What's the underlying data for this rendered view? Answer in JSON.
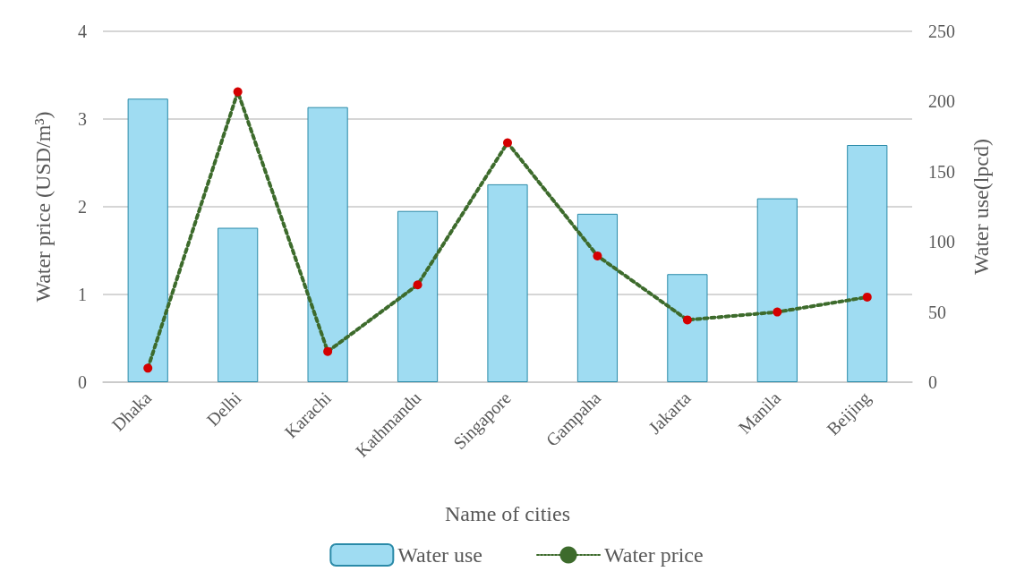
{
  "chart_data": {
    "type": "bar",
    "xlabel": "Name of cities",
    "ylabel": "Water price (USD/m³)",
    "y2label": "Water use(lpcd)",
    "categories": [
      "Dhaka",
      "Delhi",
      "Karachi",
      "Kathmandu",
      "Singapore",
      "Gampaha",
      "Jakarta",
      "Manila",
      "Beijing"
    ],
    "series": [
      {
        "name": "Water use",
        "axis": "y2",
        "color": "#9fdcf2",
        "values": [
          202,
          110,
          196,
          122,
          141,
          120,
          77,
          131,
          169
        ]
      },
      {
        "name": "Water price",
        "type": "line",
        "color": "#3d6b2c",
        "colors": [
          "#d40000",
          "#d40000",
          "#d40000",
          "#d40000",
          "#d40000",
          "#d40000",
          "#d40000",
          "#d40000",
          "#d40000"
        ],
        "marker": "circle",
        "line_style": "dotted",
        "values": [
          0.16,
          3.31,
          0.35,
          1.11,
          2.73,
          1.44,
          0.71,
          0.8,
          0.97
        ]
      }
    ],
    "ylim": [
      0,
      4
    ],
    "yticks": [
      0,
      1,
      2,
      3,
      4
    ],
    "y2lim": [
      0,
      250
    ],
    "y2ticks": [
      0,
      50,
      100,
      150,
      200,
      250
    ],
    "grid": "y",
    "legend": "bottom"
  }
}
